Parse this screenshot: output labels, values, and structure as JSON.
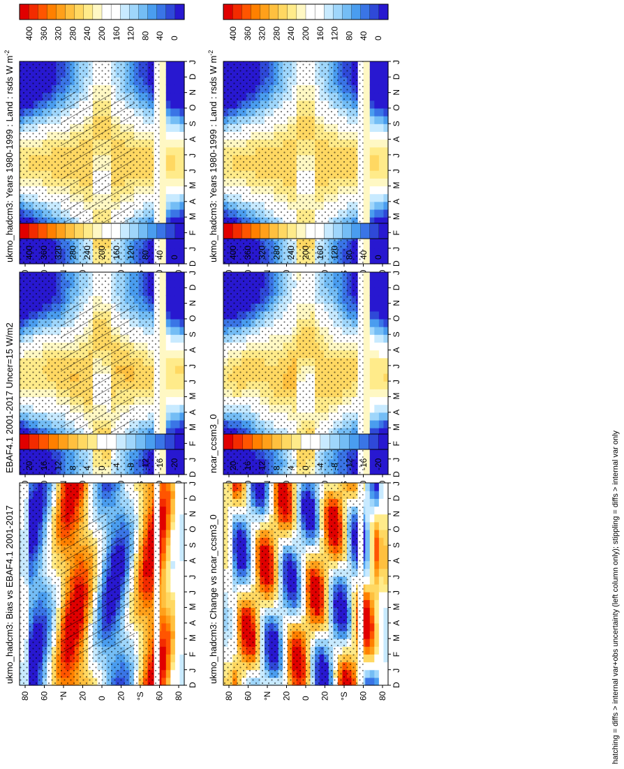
{
  "footer": "hatching = diffs > internal var+obs uncertainty (left column only); stippling = diffs > internal var only",
  "colors": {
    "abs_palette": [
      "#e00000",
      "#f32b00",
      "#ff5500",
      "#ff8000",
      "#ffa01a",
      "#ffc03f",
      "#ffd862",
      "#ffeb8a",
      "#fff8c4",
      "#ffffff",
      "#ffffff",
      "#c8eaff",
      "#9fd6fb",
      "#74bdf5",
      "#4a9def",
      "#3a75e6",
      "#2f49d8",
      "#2818d0"
    ],
    "diff_palette": [
      "#e00000",
      "#f32b00",
      "#ff5500",
      "#ff8000",
      "#ffa01a",
      "#ffc03f",
      "#ffd862",
      "#ffeb8a",
      "#ffffff",
      "#ffffff",
      "#c8eaff",
      "#9fd6fb",
      "#74bdf5",
      "#4a9def",
      "#3a75e6",
      "#2f49d8",
      "#2818d0"
    ]
  },
  "axes": {
    "month_labels": [
      "D",
      "J",
      "F",
      "M",
      "A",
      "M",
      "J",
      "J",
      "A",
      "S",
      "O",
      "N",
      "D",
      "J"
    ],
    "lat_labels": [
      "80",
      "60",
      "°N",
      "20",
      "0",
      "20",
      "°S",
      "60",
      "80"
    ]
  },
  "colorbars": {
    "abs_labels": [
      "400",
      "360",
      "320",
      "280",
      "240",
      "200",
      "160",
      "120",
      "80",
      "40",
      "0"
    ],
    "diff_labels": [
      "20",
      "16",
      "12",
      "8",
      "4",
      "0",
      "-4",
      "-8",
      "-12",
      "-16",
      "-20"
    ]
  },
  "chart_data": [
    {
      "type": "heatmap",
      "id": "ukmo_left",
      "title": "ukmo_hadcm3: Years 1980-1999 : Land : rsds W m",
      "units_sup": "-2",
      "field": "abs",
      "hatching": true,
      "stippling": true,
      "x": "month (D..J)",
      "y": "latitude 90N..90S",
      "zlim": [
        0,
        400
      ]
    },
    {
      "type": "heatmap",
      "id": "ukmo_right",
      "title": "ukmo_hadcm3: Years 1980-1999 : Land : rsds W m",
      "units_sup": "-2",
      "field": "abs",
      "hatching": false,
      "stippling": true,
      "x": "month (D..J)",
      "y": "latitude 90N..90S",
      "zlim": [
        0,
        400
      ]
    },
    {
      "type": "heatmap",
      "id": "ebaf",
      "title": "EBAF4.1 2001-2017 Uncer=15 W/m2",
      "units_sup": "",
      "field": "abs",
      "hatching": true,
      "stippling": true,
      "x": "month (D..J)",
      "y": "latitude 90N..90S",
      "zlim": [
        0,
        400
      ]
    },
    {
      "type": "heatmap",
      "id": "ncar",
      "title": "ncar_ccsm3_0",
      "units_sup": "",
      "field": "abs",
      "hatching": false,
      "stippling": true,
      "x": "month (D..J)",
      "y": "latitude 90N..90S",
      "zlim": [
        0,
        400
      ]
    },
    {
      "type": "heatmap",
      "id": "bias",
      "title": "ukmo_hadcm3: Bias vs EBAF4.1 2001-2017",
      "units_sup": "",
      "field": "diff",
      "hatching": true,
      "stippling": true,
      "x": "month (D..J)",
      "y": "latitude 90N..90S",
      "zlim": [
        -20,
        20
      ]
    },
    {
      "type": "heatmap",
      "id": "change",
      "title": "ukmo_hadcm3: Change vs ncar_ccsm3_0",
      "units_sup": "",
      "field": "diff",
      "hatching": false,
      "stippling": true,
      "x": "month (D..J)",
      "y": "latitude 90N..90S",
      "zlim": [
        -20,
        20
      ]
    }
  ]
}
